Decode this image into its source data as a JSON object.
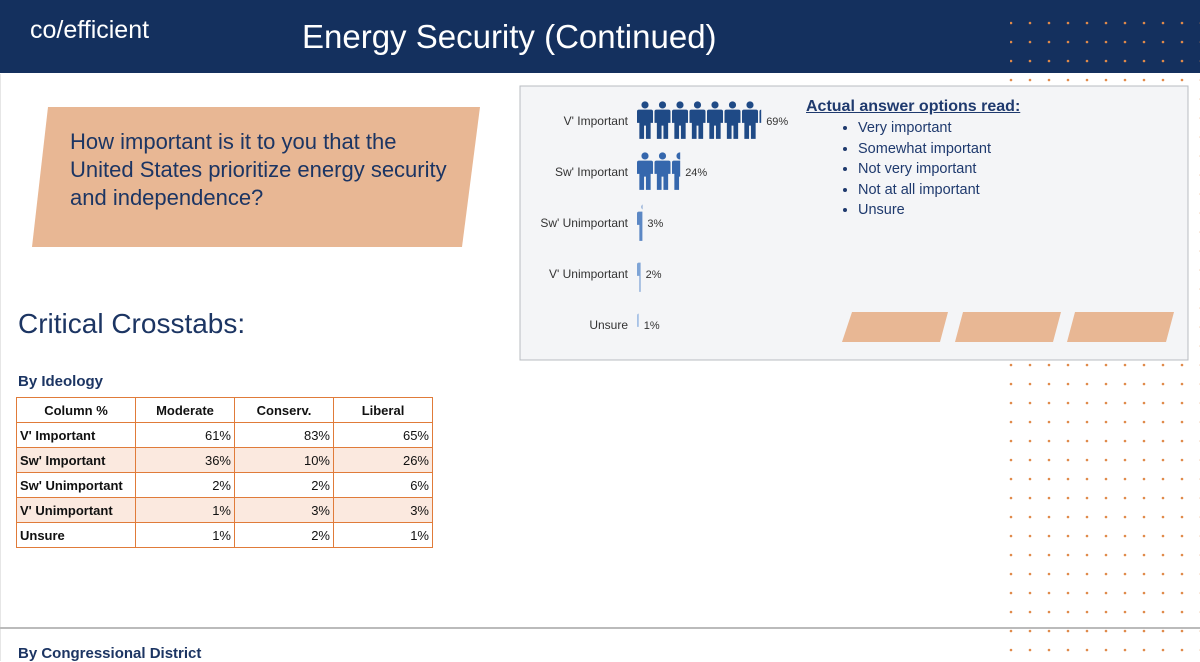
{
  "header": {
    "logo": "co/efficient",
    "title": "Energy Security (Continued)"
  },
  "question": "How important is it to you that the United States prioritize energy security and independence?",
  "chart_data": {
    "type": "pictograph",
    "categories": [
      "V' Important",
      "Sw' Important",
      "Sw' Unimportant",
      "V' Unimportant",
      "Unsure"
    ],
    "values": [
      69,
      24,
      3,
      2,
      1
    ],
    "value_labels": [
      "69%",
      "24%",
      "3%",
      "2%",
      "1%"
    ],
    "colors": [
      "#1f4a86",
      "#3567ad",
      "#5b87c4",
      "#7ea4d6",
      "#a7c2e6"
    ]
  },
  "answer_options": {
    "title": "Actual answer options read:",
    "items": [
      "Very important",
      "Somewhat important",
      "Not very important",
      "Not at all important",
      "Unsure"
    ]
  },
  "section_title": "Critical Crosstabs:",
  "crosstab": {
    "title": "By Ideology",
    "header": [
      "Column %",
      "Moderate",
      "Conserv.",
      "Liberal"
    ],
    "rows": [
      [
        "V' Important",
        "61%",
        "83%",
        "65%"
      ],
      [
        "Sw' Important",
        "36%",
        "10%",
        "26%"
      ],
      [
        "Sw' Unimportant",
        "2%",
        "2%",
        "6%"
      ],
      [
        "V' Unimportant",
        "1%",
        "3%",
        "3%"
      ],
      [
        "Unsure",
        "1%",
        "2%",
        "1%"
      ]
    ]
  },
  "next_section": "By Congressional District"
}
